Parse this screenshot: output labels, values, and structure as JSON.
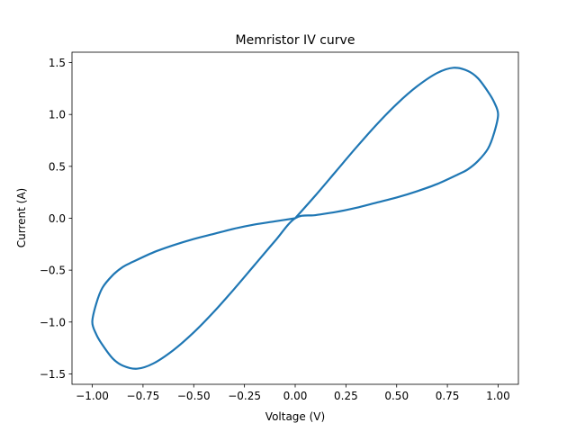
{
  "chart_data": {
    "type": "line",
    "title": "Memristor IV curve",
    "xlabel": "Voltage (V)",
    "ylabel": "Current (A)",
    "xlim": [
      -1.1,
      1.1
    ],
    "ylim": [
      -1.6,
      1.6
    ],
    "x_ticks": [
      -1.0,
      -0.75,
      -0.5,
      -0.25,
      0.0,
      0.25,
      0.5,
      0.75,
      1.0
    ],
    "x_tick_labels": [
      "−1.00",
      "−0.75",
      "−0.50",
      "−0.25",
      "0.00",
      "0.25",
      "0.50",
      "0.75",
      "1.00"
    ],
    "y_ticks": [
      -1.5,
      -1.0,
      -0.5,
      0.0,
      0.5,
      1.0,
      1.5
    ],
    "y_tick_labels": [
      "−1.5",
      "−1.0",
      "−0.5",
      "0.0",
      "0.5",
      "1.0",
      "1.5"
    ],
    "grid": false,
    "legend": "none",
    "series": [
      {
        "color": "#1f77b4",
        "x": [
          0.0,
          0.1,
          0.2,
          0.3,
          0.4,
          0.5,
          0.6,
          0.7,
          0.78,
          0.85,
          0.9,
          0.95,
          0.98,
          1.0,
          0.98,
          0.95,
          0.9,
          0.85,
          0.8,
          0.7,
          0.6,
          0.5,
          0.4,
          0.3,
          0.2,
          0.1,
          0.0,
          -0.1,
          -0.2,
          -0.3,
          -0.4,
          -0.5,
          -0.6,
          -0.7,
          -0.78,
          -0.85,
          -0.9,
          -0.95,
          -0.98,
          -1.0,
          -0.98,
          -0.95,
          -0.9,
          -0.85,
          -0.8,
          -0.7,
          -0.6,
          -0.5,
          -0.4,
          -0.3,
          -0.2,
          -0.1,
          0.0
        ],
        "y": [
          0.0,
          0.22,
          0.45,
          0.68,
          0.9,
          1.1,
          1.27,
          1.4,
          1.45,
          1.42,
          1.35,
          1.22,
          1.12,
          1.0,
          0.82,
          0.67,
          0.55,
          0.47,
          0.42,
          0.33,
          0.26,
          0.2,
          0.15,
          0.1,
          0.06,
          0.03,
          0.0,
          -0.22,
          -0.45,
          -0.68,
          -0.9,
          -1.1,
          -1.27,
          -1.4,
          -1.45,
          -1.42,
          -1.35,
          -1.22,
          -1.12,
          -1.0,
          -0.82,
          -0.67,
          -0.55,
          -0.47,
          -0.42,
          -0.33,
          -0.26,
          -0.2,
          -0.15,
          -0.1,
          -0.06,
          -0.03,
          0.0
        ]
      }
    ]
  }
}
